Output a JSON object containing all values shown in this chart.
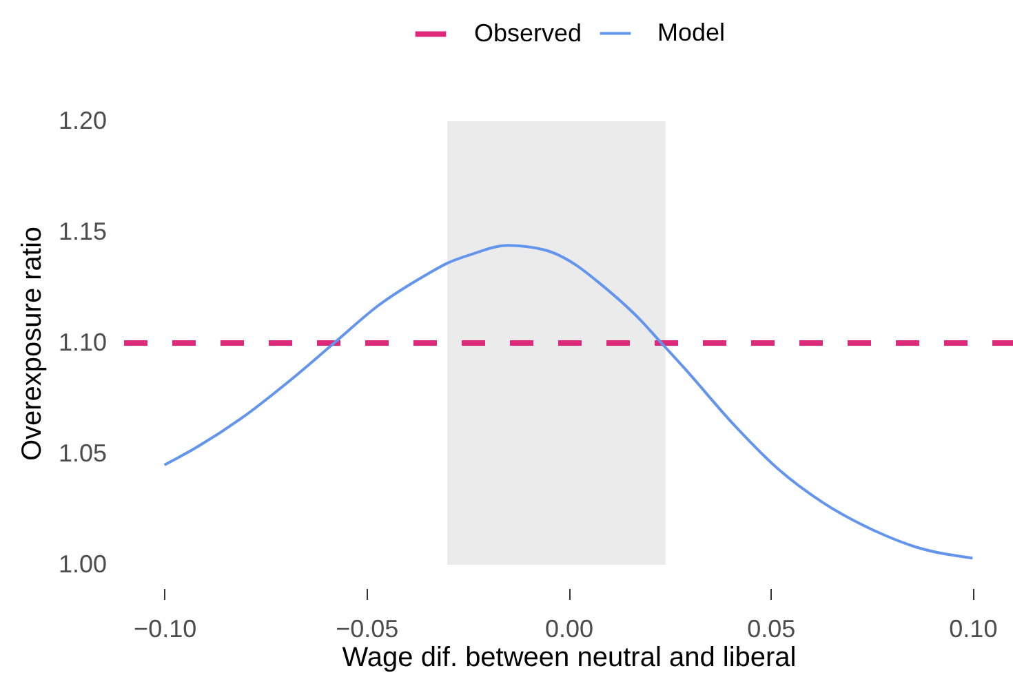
{
  "chart_data": {
    "type": "line",
    "xlabel": "Wage dif. between neutral and liberal",
    "ylabel": "Overexposure ratio",
    "x": [
      -0.1,
      -0.092,
      -0.081,
      -0.069,
      -0.058,
      -0.047,
      -0.035,
      -0.03,
      -0.024,
      -0.015,
      -0.006,
      0.002,
      0.007,
      0.018,
      0.022,
      0.029,
      0.041,
      0.052,
      0.063,
      0.075,
      0.086,
      0.1
    ],
    "series": [
      {
        "name": "Observed",
        "color": "#dd2a7b",
        "line_style": "dashed",
        "x": [
          -0.11,
          0.11
        ],
        "values": [
          1.1,
          1.1
        ]
      },
      {
        "name": "Model",
        "color": "#6495ed",
        "line_style": "solid",
        "values": [
          1.045,
          1.053,
          1.066,
          1.083,
          1.1,
          1.117,
          1.131,
          1.136,
          1.14,
          1.144,
          1.142,
          1.135,
          1.128,
          1.11,
          1.102,
          1.088,
          1.063,
          1.043,
          1.028,
          1.016,
          1.008,
          1.003
        ]
      }
    ],
    "xlim": [
      -0.11,
      0.11
    ],
    "ylim": [
      1.0,
      1.2
    ],
    "xticks": [
      {
        "value": -0.1,
        "label": "−0.10"
      },
      {
        "value": -0.05,
        "label": "−0.05"
      },
      {
        "value": 0,
        "label": "0.00"
      },
      {
        "value": 0.05,
        "label": "0.05"
      },
      {
        "value": 0.1,
        "label": "0.10"
      }
    ],
    "yticks": [
      {
        "value": 1.0,
        "label": "1.00"
      },
      {
        "value": 1.05,
        "label": "1.05"
      },
      {
        "value": 1.1,
        "label": "1.10"
      },
      {
        "value": 1.15,
        "label": "1.15"
      },
      {
        "value": 1.2,
        "label": "1.20"
      }
    ],
    "bands": [
      {
        "axis": "x",
        "from": -0.03,
        "to": 0.024,
        "color": "#ebebeb"
      }
    ],
    "grid": false,
    "legend": "top"
  }
}
